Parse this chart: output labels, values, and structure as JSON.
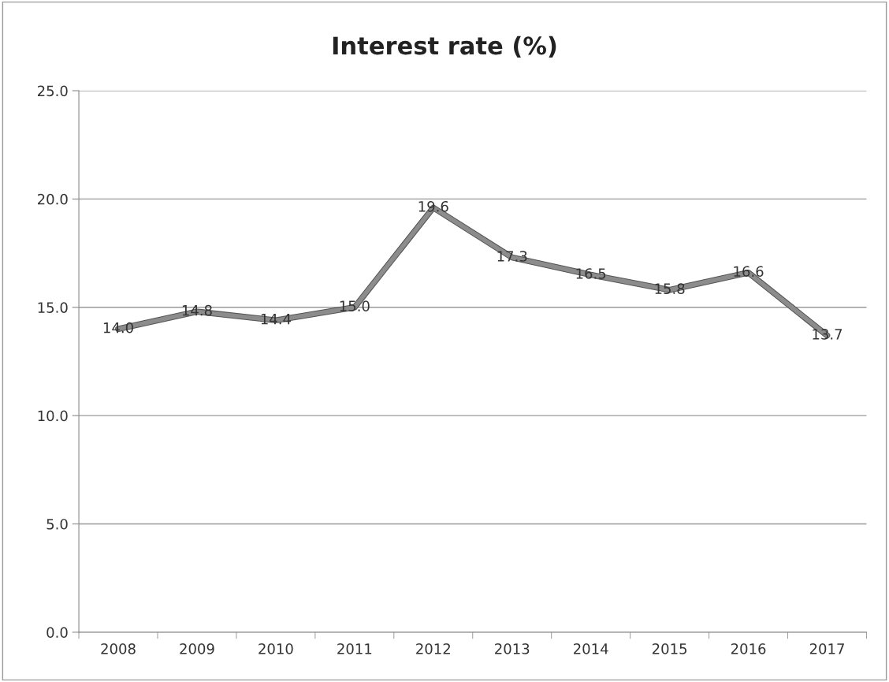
{
  "chart_data": {
    "type": "line",
    "title": "Interest rate (%)",
    "categories": [
      "2008",
      "2009",
      "2010",
      "2011",
      "2012",
      "2013",
      "2014",
      "2015",
      "2016",
      "2017"
    ],
    "series": [
      {
        "color": "#8c8c8c",
        "values": [
          14.0,
          14.8,
          14.4,
          15.0,
          19.6,
          17.3,
          16.5,
          15.8,
          16.6,
          13.7
        ],
        "value_labels": [
          "14.0",
          "14.8",
          "14.4",
          "15.0",
          "19.6",
          "17.3",
          "16.5",
          "15.8",
          "16.6",
          "13.7"
        ]
      }
    ],
    "ylim": [
      0,
      25
    ],
    "yticks": [
      {
        "value": 0,
        "label": "0.0"
      },
      {
        "value": 5,
        "label": "5.0"
      },
      {
        "value": 10,
        "label": "10.0"
      },
      {
        "value": 15,
        "label": "15.0"
      },
      {
        "value": 20,
        "label": "20.0"
      },
      {
        "value": 25,
        "label": "25.0"
      }
    ],
    "grid": "y",
    "legend": false,
    "marker": "none",
    "line_style": "solid"
  }
}
